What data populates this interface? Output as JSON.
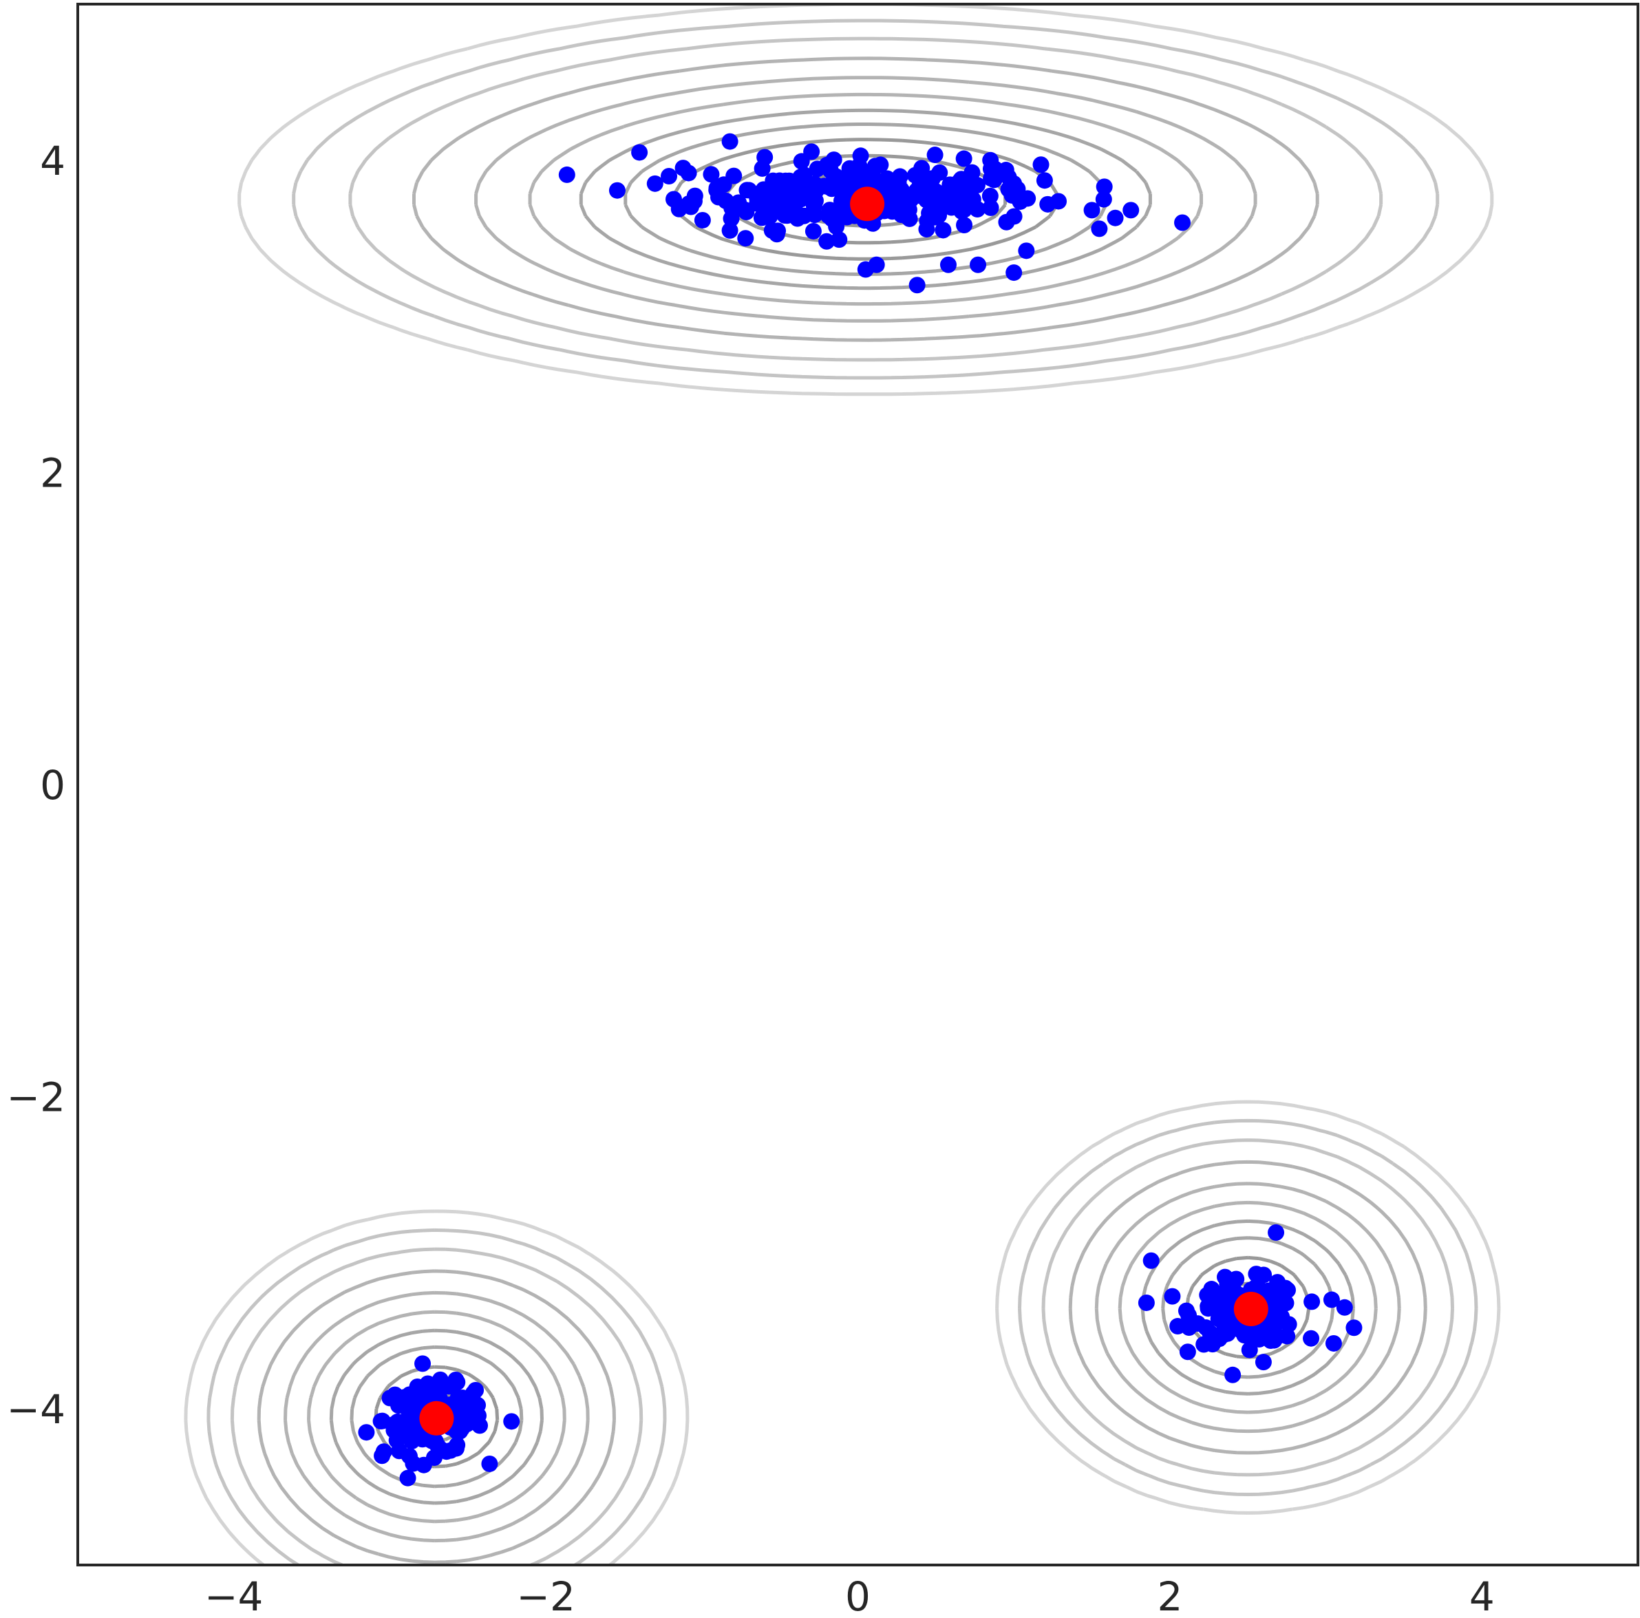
{
  "chart_data": {
    "type": "scatter",
    "title": "",
    "xlabel": "",
    "ylabel": "",
    "xlim": [
      -5,
      5
    ],
    "ylim": [
      -5,
      5
    ],
    "x_ticks": [
      {
        "value": -4,
        "label": "−4"
      },
      {
        "value": -2,
        "label": "−2"
      },
      {
        "value": 0,
        "label": "0"
      },
      {
        "value": 2,
        "label": "2"
      },
      {
        "value": 4,
        "label": "4"
      }
    ],
    "y_ticks": [
      {
        "value": -4,
        "label": "−4"
      },
      {
        "value": -2,
        "label": "−2"
      },
      {
        "value": 0,
        "label": "0"
      },
      {
        "value": 2,
        "label": "2"
      },
      {
        "value": 4,
        "label": "4"
      }
    ],
    "grid": false,
    "legend": "none",
    "background_contours": {
      "description_free": true,
      "line_colors": [
        "#999999",
        "#a6a6a6",
        "#b3b3b3",
        "#c4c4c4",
        "#d4d4d4"
      ],
      "modes": [
        {
          "x": 0.05,
          "y": 3.75,
          "sx": 1.35,
          "sy": 0.42
        },
        {
          "x": -2.7,
          "y": -4.05,
          "sx": 0.55,
          "sy": 0.45
        },
        {
          "x": 2.5,
          "y": -3.35,
          "sx": 0.55,
          "sy": 0.45
        }
      ],
      "mode_weights": [
        1.0,
        0.85,
        0.85
      ],
      "levels": [
        0.92,
        0.8,
        0.66,
        0.52,
        0.4,
        0.28,
        0.18,
        0.1,
        0.05,
        0.025,
        0.012
      ]
    },
    "series": [
      {
        "color": "#0000ff",
        "clusters": [
          {
            "center": [
              0.05,
              3.78
            ],
            "spread": [
              0.55,
              0.11
            ],
            "count": 260
          },
          {
            "center": [
              -2.72,
              -4.07
            ],
            "spread": [
              0.16,
              0.11
            ],
            "count": 140
          },
          {
            "center": [
              2.5,
              -3.38
            ],
            "spread": [
              0.17,
              0.1
            ],
            "count": 140
          }
        ],
        "outliers": [
          [
            -1.4,
            4.05
          ],
          [
            -1.3,
            3.85
          ],
          [
            -1.12,
            3.95
          ],
          [
            -1.18,
            3.75
          ],
          [
            -0.82,
            4.12
          ],
          [
            -0.82,
            3.55
          ],
          [
            -0.72,
            3.5
          ],
          [
            -0.55,
            3.55
          ],
          [
            -0.2,
            3.48
          ],
          [
            0.05,
            3.3
          ],
          [
            0.12,
            3.33
          ],
          [
            0.38,
            3.2
          ],
          [
            0.58,
            3.33
          ],
          [
            0.77,
            3.33
          ],
          [
            1.0,
            3.28
          ],
          [
            1.08,
            3.42
          ],
          [
            1.0,
            3.85
          ],
          [
            0.68,
            4.01
          ],
          [
            0.85,
            4.0
          ],
          [
            1.5,
            3.68
          ],
          [
            1.58,
            3.83
          ],
          [
            1.65,
            3.63
          ],
          [
            1.75,
            3.68
          ],
          [
            2.08,
            3.6
          ],
          [
            -3.15,
            -4.15
          ],
          [
            -3.05,
            -4.3
          ],
          [
            -2.85,
            -4.35
          ],
          [
            -2.45,
            -3.88
          ],
          [
            -2.22,
            -4.08
          ],
          [
            1.88,
            -3.05
          ],
          [
            1.85,
            -3.32
          ],
          [
            2.68,
            -2.87
          ],
          [
            3.12,
            -3.35
          ],
          [
            3.18,
            -3.48
          ],
          [
            3.05,
            -3.58
          ],
          [
            2.6,
            -3.7
          ]
        ]
      },
      {
        "color": "#ff0000",
        "points": [
          [
            0.06,
            3.72
          ],
          [
            -2.7,
            -4.06
          ],
          [
            2.52,
            -3.36
          ]
        ]
      }
    ]
  }
}
